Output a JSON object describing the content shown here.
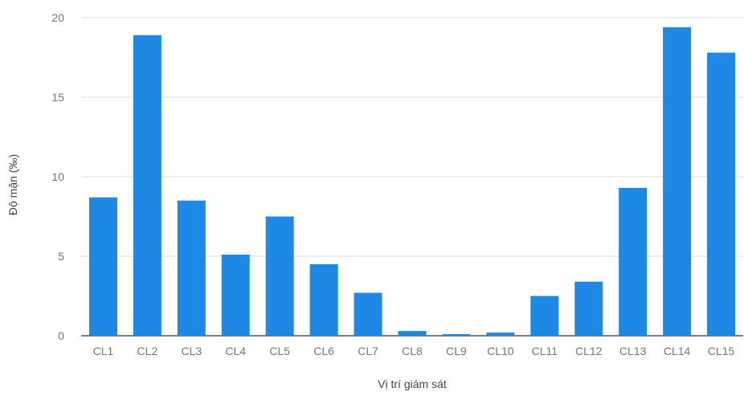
{
  "chart_data": {
    "type": "bar",
    "title": "",
    "xlabel": "Vị trí giám sát",
    "ylabel": "Độ mặn (‰)",
    "categories": [
      "CL1",
      "CL2",
      "CL3",
      "CL4",
      "CL5",
      "CL6",
      "CL7",
      "CL8",
      "CL9",
      "CL10",
      "CL11",
      "CL12",
      "CL13",
      "CL14",
      "CL15"
    ],
    "series": [
      {
        "values": [
          8.7,
          18.9,
          8.5,
          5.1,
          7.5,
          4.5,
          2.7,
          0.3,
          0.1,
          0.2,
          2.5,
          3.4,
          9.3,
          19.4,
          17.8
        ],
        "color": "#1e88e5"
      }
    ],
    "ylim": [
      0,
      20
    ],
    "yticks": [
      "0",
      "5",
      "10",
      "15",
      "20"
    ],
    "grid": true,
    "legend": "none"
  }
}
